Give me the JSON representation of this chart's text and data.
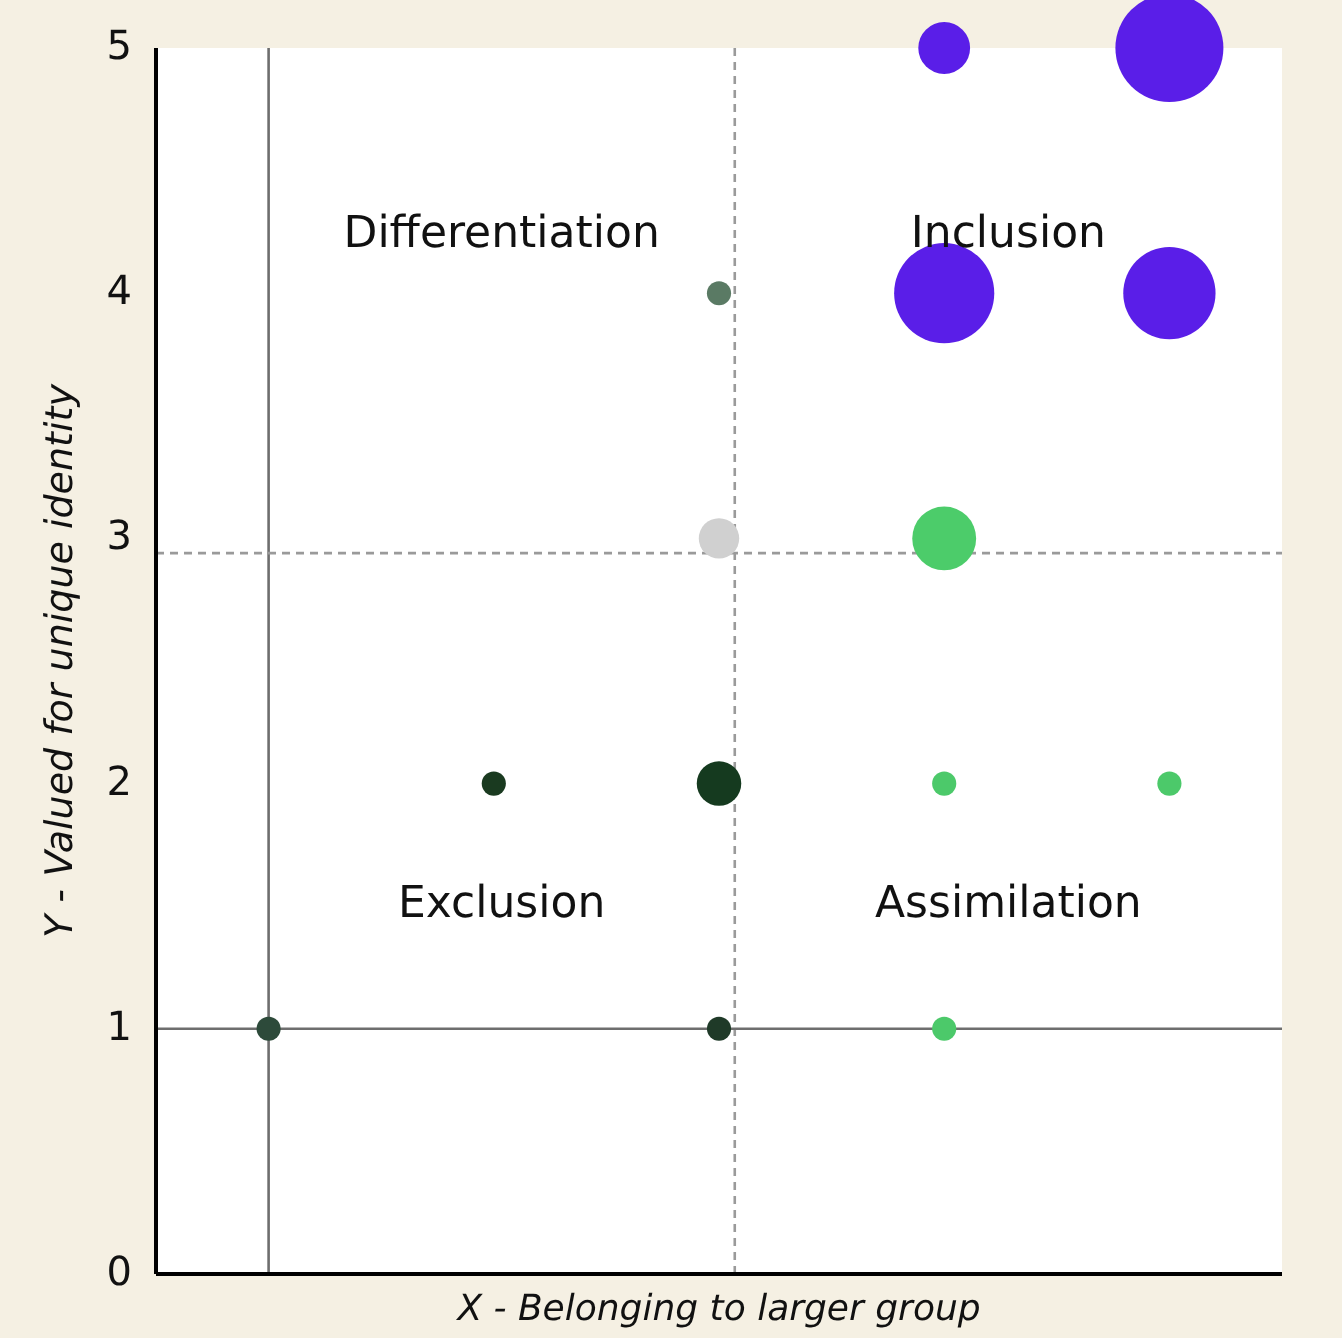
{
  "chart_data": {
    "type": "bubble",
    "xlabel": "X - Belonging to larger group",
    "ylabel": "Y - Valued for unique identity",
    "categories": [
      null,
      null,
      null,
      null,
      null
    ],
    "series": [
      {
        "values": [
          1,
          null,
          1,
          1,
          null
        ],
        "sizes": [
          0.05,
          null,
          0.05,
          0.05,
          null
        ],
        "colors": [
          "#2d4a3a",
          null,
          "#1f3a28",
          "#4cc96a",
          null
        ]
      },
      {
        "values": [
          null,
          2,
          2,
          2,
          2
        ],
        "sizes": [
          null,
          0.05,
          0.17,
          0.05,
          0.05
        ],
        "colors": [
          null,
          "#1a3a20",
          "#153a1f",
          "#4cc96a",
          "#4cc96a"
        ]
      },
      {
        "values": [
          null,
          null,
          3,
          3,
          null
        ],
        "sizes": [
          null,
          null,
          0.14,
          0.35,
          null
        ],
        "colors": [
          null,
          null,
          "#d0d0d0",
          "#4ccc6a",
          null
        ]
      },
      {
        "values": [
          null,
          null,
          4,
          4,
          4
        ],
        "sizes": [
          null,
          null,
          0.05,
          0.86,
          0.73
        ],
        "colors": [
          null,
          null,
          "#5a7a64",
          "#5a1ee8",
          "#5a1ee8"
        ]
      },
      {
        "values": [
          null,
          null,
          null,
          5,
          5
        ],
        "sizes": [
          null,
          null,
          null,
          0.23,
          1
        ],
        "colors": [
          null,
          null,
          null,
          "#5a1ee8",
          "#5a1ee8"
        ]
      }
    ],
    "ylim": [
      0,
      5
    ],
    "yticks": [
      0,
      1,
      2,
      3,
      4,
      5
    ],
    "tick_labels": "y",
    "ref_lines": [
      {
        "axis": "y",
        "value": 1,
        "color": "#6e6e6e",
        "line_style": "solid"
      },
      {
        "axis": "y",
        "value": 2.94,
        "color": "#9a9a9a",
        "line_style": "dashed"
      }
    ],
    "annotations": [
      "Differentiation",
      "Inclusion",
      "Exclusion",
      "Assimilation"
    ]
  }
}
